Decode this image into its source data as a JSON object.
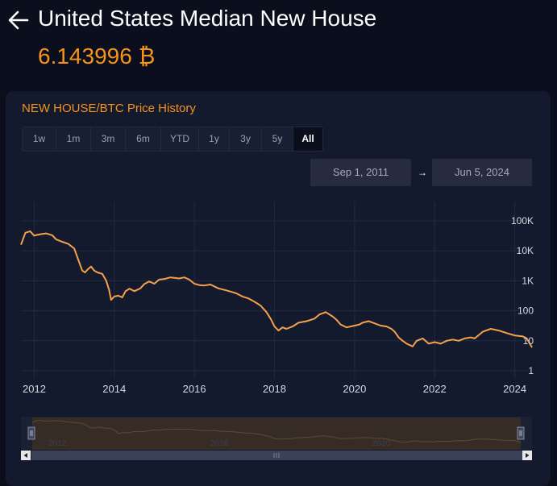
{
  "header": {
    "back_icon": "arrow-left-icon",
    "title": "United States Median New House",
    "price": "6.143996 ₿"
  },
  "panel": {
    "title": "NEW HOUSE/BTC Price History",
    "ranges": [
      {
        "label": "1w"
      },
      {
        "label": "1m"
      },
      {
        "label": "3m"
      },
      {
        "label": "6m"
      },
      {
        "label": "YTD"
      },
      {
        "label": "1y"
      },
      {
        "label": "3y"
      },
      {
        "label": "5y"
      },
      {
        "label": "All",
        "active": true
      }
    ],
    "date_from": "Sep 1, 2011",
    "date_arrow": "→",
    "date_to": "Jun 5, 2024"
  },
  "colors": {
    "background": "#0b0e1c",
    "panel": "#141a2e",
    "accent": "#f7931a",
    "line": "#f5a04a"
  },
  "chart_data": {
    "type": "line",
    "title": "",
    "xlabel": "",
    "ylabel": "",
    "y_scale": "log",
    "x_ticks": [
      "2012",
      "2014",
      "2016",
      "2018",
      "2020",
      "2022",
      "2024"
    ],
    "y_ticks": [
      "100K",
      "10K",
      "1K",
      "100",
      "10",
      "1"
    ],
    "y_tick_values": [
      100000,
      10000,
      1000,
      100,
      10,
      1
    ],
    "xlim": [
      2011.67,
      2024.43
    ],
    "ylim": [
      0.8,
      200000
    ],
    "grid": true,
    "legend": "none",
    "series": [
      {
        "x": [
          2011.67,
          2011.78,
          2011.9,
          2012.0,
          2012.08,
          2012.17,
          2012.3,
          2012.45,
          2012.55,
          2012.7,
          2012.85,
          2013.0,
          2013.08,
          2013.2,
          2013.27,
          2013.35,
          2013.42,
          2013.5,
          2013.58,
          2013.7,
          2013.8,
          2013.87,
          2013.92,
          2014.0,
          2014.1,
          2014.2,
          2014.28,
          2014.38,
          2014.5,
          2014.65,
          2014.75,
          2014.87,
          2015.0,
          2015.12,
          2015.25,
          2015.4,
          2015.5,
          2015.62,
          2015.75,
          2015.87,
          2016.0,
          2016.12,
          2016.25,
          2016.4,
          2016.6,
          2016.8,
          2016.95,
          2017.05,
          2017.2,
          2017.35,
          2017.5,
          2017.65,
          2017.8,
          2017.92,
          2018.0,
          2018.1,
          2018.2,
          2018.3,
          2018.45,
          2018.6,
          2018.8,
          2019.0,
          2019.12,
          2019.28,
          2019.45,
          2019.55,
          2019.65,
          2019.8,
          2020.0,
          2020.12,
          2020.2,
          2020.35,
          2020.5,
          2020.65,
          2020.8,
          2020.92,
          2021.0,
          2021.1,
          2021.2,
          2021.3,
          2021.45,
          2021.55,
          2021.7,
          2021.85,
          2022.0,
          2022.15,
          2022.3,
          2022.45,
          2022.6,
          2022.75,
          2022.9,
          2023.0,
          2023.2,
          2023.4,
          2023.6,
          2023.8,
          2024.0,
          2024.2,
          2024.3,
          2024.43
        ],
        "y": [
          16000,
          40000,
          45000,
          32000,
          34000,
          36000,
          38000,
          33000,
          24000,
          20000,
          17000,
          12000,
          6000,
          2200,
          1900,
          2500,
          3000,
          2200,
          1900,
          1700,
          1000,
          500,
          230,
          300,
          320,
          280,
          450,
          550,
          450,
          560,
          780,
          950,
          800,
          1100,
          1150,
          1300,
          1250,
          1200,
          1300,
          1100,
          800,
          720,
          700,
          750,
          560,
          480,
          420,
          380,
          300,
          260,
          200,
          150,
          90,
          50,
          30,
          22,
          28,
          25,
          30,
          40,
          45,
          55,
          75,
          90,
          65,
          50,
          35,
          28,
          32,
          35,
          40,
          45,
          38,
          32,
          30,
          25,
          20,
          13,
          10,
          8,
          6.5,
          10,
          12,
          8,
          9,
          8,
          10,
          11,
          10,
          12,
          13,
          12,
          20,
          25,
          22,
          18,
          15,
          14,
          12,
          6
        ]
      }
    ]
  }
}
